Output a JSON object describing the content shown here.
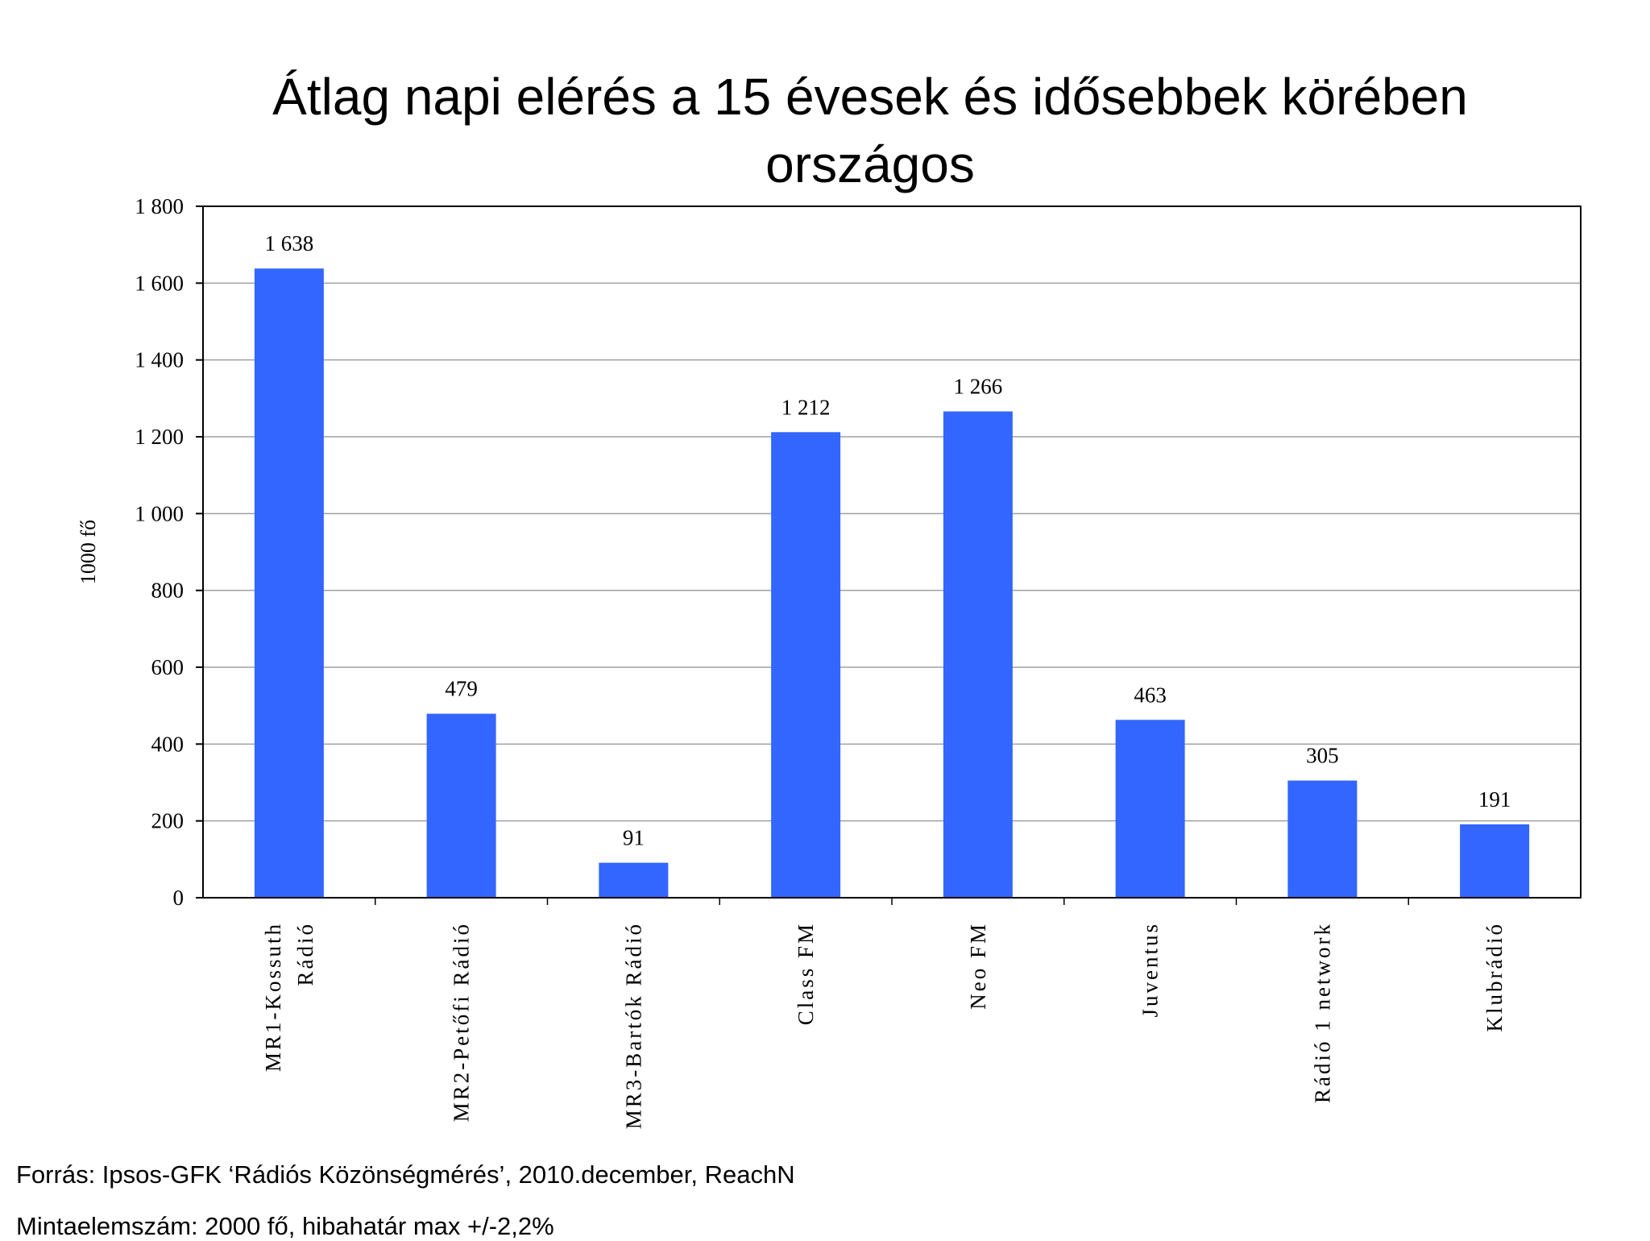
{
  "title_line1": "Átlag napi elérés a 15 évesek és idősebbek körében",
  "title_line2": "országos",
  "source_note": "Forrás: Ipsos-GFK ‘Rádiós Közönségmérés’, 2010.december, ReachN",
  "sample_note": "Mintaelemszám: 2000 fő, hibahatár max +/-2,2%",
  "colors": {
    "bar": "#3366FF",
    "grid": "#A0A0A0",
    "axis": "#000000"
  },
  "chart_data": {
    "type": "bar",
    "ylabel": "1000 fő",
    "ylim": [
      0,
      1800
    ],
    "yticks": [
      0,
      200,
      400,
      600,
      800,
      1000,
      1200,
      1400,
      1600,
      1800
    ],
    "ytick_labels": [
      "0",
      "200",
      "400",
      "600",
      "800",
      "1 000",
      "1 200",
      "1 400",
      "1 600",
      "1 800"
    ],
    "grid": true,
    "categories": [
      [
        "MR1-Kossuth",
        "Rádió"
      ],
      [
        "MR2-Petőfi Rádió"
      ],
      [
        "MR3-Bartók Rádió"
      ],
      [
        "Class FM"
      ],
      [
        "Neo FM"
      ],
      [
        "Juventus"
      ],
      [
        "Rádió 1 network"
      ],
      [
        "Klubrádió"
      ]
    ],
    "values": [
      1638,
      479,
      91,
      1212,
      1266,
      463,
      305,
      191
    ],
    "data_labels": [
      "1 638",
      "479",
      "91",
      "1 212",
      "1 266",
      "463",
      "305",
      "191"
    ]
  }
}
